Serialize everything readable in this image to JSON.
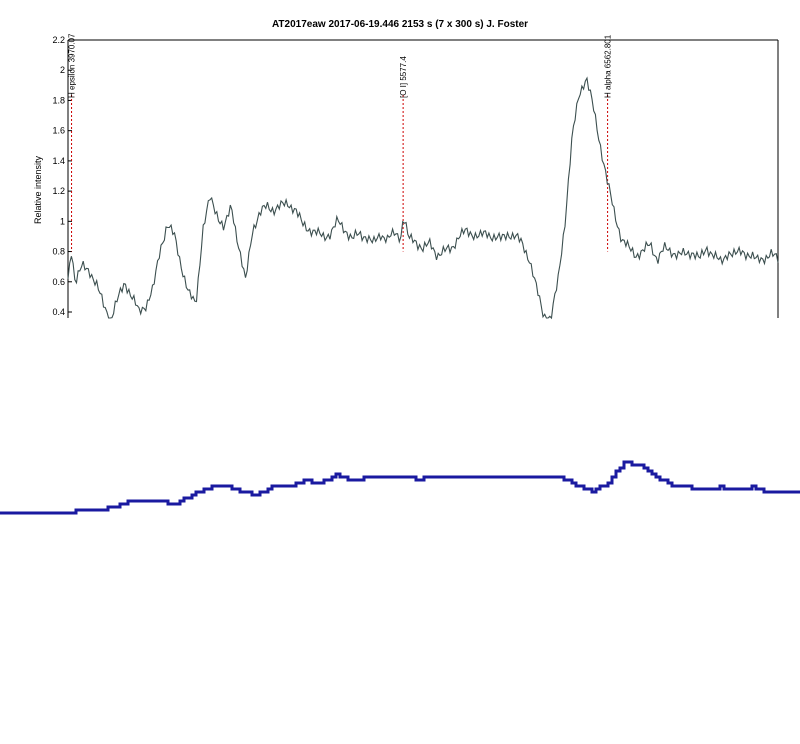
{
  "chart_data": [
    {
      "type": "line",
      "title": "AT2017eaw    2017-06-19.446   2153 s (7 x 300 s)   J. Foster",
      "xlabel": "",
      "ylabel": "Relative intensity",
      "ylim": [
        0.4,
        2.2
      ],
      "yticks": [
        "2.2",
        "2",
        "1.8",
        "1.6",
        "1.4",
        "1.2",
        "1",
        "0.8",
        "0.6",
        "0.4"
      ],
      "grid": false,
      "line_color": "#3c4f4f",
      "marker_color": "#cc0000",
      "line_markers": [
        {
          "label": "H epsilon 3970.07",
          "x": 0.005
        },
        {
          "label": "[O I] 5577.4",
          "x": 0.472
        },
        {
          "label": "H alpha 6562.801",
          "x": 0.76
        }
      ],
      "series": [
        {
          "x": [
            0,
            0.005,
            0.01,
            0.02,
            0.03,
            0.04,
            0.05,
            0.06,
            0.07,
            0.08,
            0.09,
            0.1,
            0.11,
            0.12,
            0.13,
            0.14,
            0.15,
            0.16,
            0.17,
            0.18,
            0.19,
            0.2,
            0.21,
            0.22,
            0.23,
            0.24,
            0.25,
            0.26,
            0.27,
            0.28,
            0.29,
            0.3,
            0.31,
            0.32,
            0.33,
            0.34,
            0.35,
            0.36,
            0.37,
            0.38,
            0.39,
            0.4,
            0.41,
            0.42,
            0.43,
            0.44,
            0.45,
            0.46,
            0.47,
            0.472,
            0.48,
            0.49,
            0.5,
            0.51,
            0.52,
            0.53,
            0.54,
            0.55,
            0.56,
            0.57,
            0.58,
            0.59,
            0.6,
            0.61,
            0.62,
            0.63,
            0.64,
            0.65,
            0.66,
            0.67,
            0.68,
            0.69,
            0.7,
            0.71,
            0.72,
            0.73,
            0.74,
            0.75,
            0.76,
            0.77,
            0.78,
            0.79,
            0.8,
            0.81,
            0.82,
            0.83,
            0.84,
            0.85,
            0.86,
            0.87,
            0.88,
            0.89,
            0.9,
            0.91,
            0.92,
            0.93,
            0.94,
            0.95,
            0.96,
            0.97,
            0.98,
            0.99,
            1.0
          ],
          "values": [
            0.62,
            0.82,
            0.6,
            0.7,
            0.68,
            0.58,
            0.45,
            0.35,
            0.48,
            0.6,
            0.5,
            0.4,
            0.45,
            0.55,
            0.82,
            0.98,
            0.9,
            0.7,
            0.52,
            0.45,
            0.95,
            1.15,
            1.05,
            0.95,
            1.1,
            0.85,
            0.6,
            0.95,
            1.05,
            1.1,
            1.08,
            1.1,
            1.12,
            1.08,
            0.98,
            0.95,
            0.92,
            0.9,
            0.92,
            1.0,
            0.95,
            0.88,
            0.92,
            0.9,
            0.85,
            0.92,
            0.88,
            0.92,
            0.9,
            1.05,
            0.88,
            0.87,
            0.82,
            0.85,
            0.78,
            0.8,
            0.82,
            0.9,
            0.93,
            0.92,
            0.9,
            0.92,
            0.9,
            0.88,
            0.92,
            0.9,
            0.85,
            0.75,
            0.55,
            0.38,
            0.35,
            0.6,
            1.0,
            1.55,
            1.85,
            1.95,
            1.75,
            1.5,
            1.25,
            1.05,
            0.88,
            0.82,
            0.78,
            0.8,
            0.85,
            0.75,
            0.82,
            0.8,
            0.78,
            0.78,
            0.8,
            0.75,
            0.82,
            0.78,
            0.72,
            0.8,
            0.78,
            0.8,
            0.78,
            0.74,
            0.76,
            0.78,
            0.75
          ]
        }
      ]
    },
    {
      "type": "line",
      "title": "",
      "xlabel": "",
      "ylabel": "",
      "grid": false,
      "line_color": "#1a1aa0",
      "series": [
        {
          "x": [
            0,
            0.02,
            0.04,
            0.06,
            0.08,
            0.1,
            0.12,
            0.14,
            0.16,
            0.18,
            0.2,
            0.22,
            0.24,
            0.26,
            0.28,
            0.3,
            0.32,
            0.34,
            0.36,
            0.38,
            0.4,
            0.42,
            0.44,
            0.46,
            0.48,
            0.5,
            0.52,
            0.54,
            0.56,
            0.58,
            0.6,
            0.62,
            0.64,
            0.66,
            0.68,
            0.7,
            0.72,
            0.74,
            0.76,
            0.78,
            0.8,
            0.82,
            0.84,
            0.86,
            0.88,
            0.9,
            0.92,
            0.94,
            0.96,
            0.98,
            1.0
          ],
          "values": [
            0.0,
            0.0,
            0.0,
            0.0,
            0.02,
            0.05,
            0.06,
            0.09,
            0.17,
            0.2,
            0.17,
            0.15,
            0.27,
            0.37,
            0.42,
            0.33,
            0.27,
            0.38,
            0.39,
            0.47,
            0.45,
            0.56,
            0.47,
            0.52,
            0.52,
            0.53,
            0.5,
            0.52,
            0.53,
            0.53,
            0.53,
            0.53,
            0.53,
            0.53,
            0.53,
            0.52,
            0.42,
            0.33,
            0.45,
            0.75,
            0.68,
            0.52,
            0.42,
            0.38,
            0.36,
            0.38,
            0.37,
            0.38,
            0.32,
            0.3,
            0.31
          ]
        }
      ]
    }
  ]
}
